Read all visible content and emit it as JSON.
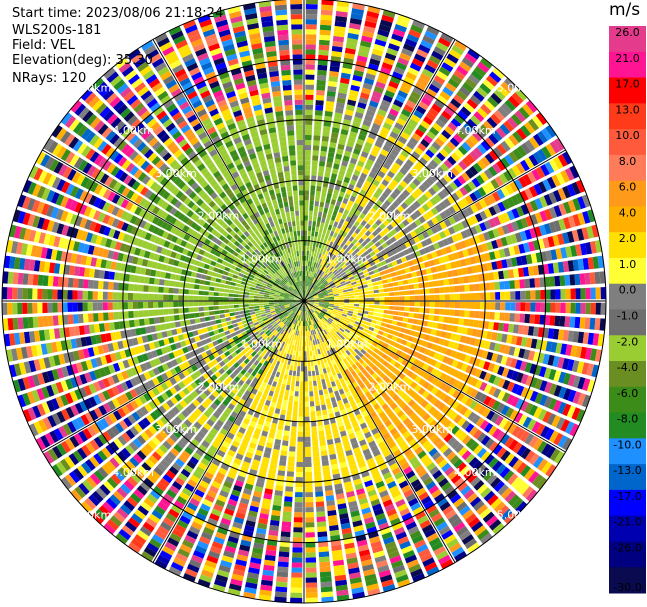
{
  "header": {
    "start_time": "Start time: 2023/08/06 21:18:24",
    "instrument": "WLS200s-181",
    "field": "Field: VEL",
    "elevation": "Elevation(deg): 35.30",
    "nrays": "NRays: 120"
  },
  "colorbar": {
    "unit": "m/s",
    "ticks": [
      "26.0",
      "21.0",
      "17.0",
      "13.0",
      "10.0",
      "8.0",
      "6.0",
      "4.0",
      "2.0",
      "1.0",
      "0.0",
      "-1.0",
      "-2.0",
      "-4.0",
      "-6.0",
      "-8.0",
      "-10.0",
      "-13.0",
      "-17.0",
      "-21.0",
      "-26.0",
      "-30.0"
    ],
    "colors": [
      "#e53b8c",
      "#ff1493",
      "#ff0000",
      "#ff3b1a",
      "#ff5a3c",
      "#ff7b5a",
      "#ff9a1a",
      "#ffb000",
      "#ffe000",
      "#ffff33",
      "#7f7f7f",
      "#6e6e6e",
      "#9acd32",
      "#6b8e23",
      "#3c8c1a",
      "#228b22",
      "#1e90ff",
      "#0066cc",
      "#0000ff",
      "#0000b0",
      "#000080",
      "#0a0a50"
    ]
  },
  "chart_data": {
    "type": "ppi",
    "variable": "VEL",
    "units": "m/s",
    "nrays": 120,
    "range_ring_labels": [
      "1.00km",
      "2.00km",
      "3.00km",
      "4.00km",
      "5.00km"
    ],
    "range_rings_km": [
      1,
      2,
      3,
      4,
      5
    ],
    "max_range_km": 5.0,
    "value_range": [
      -30.0,
      26.0
    ],
    "grid": true
  }
}
